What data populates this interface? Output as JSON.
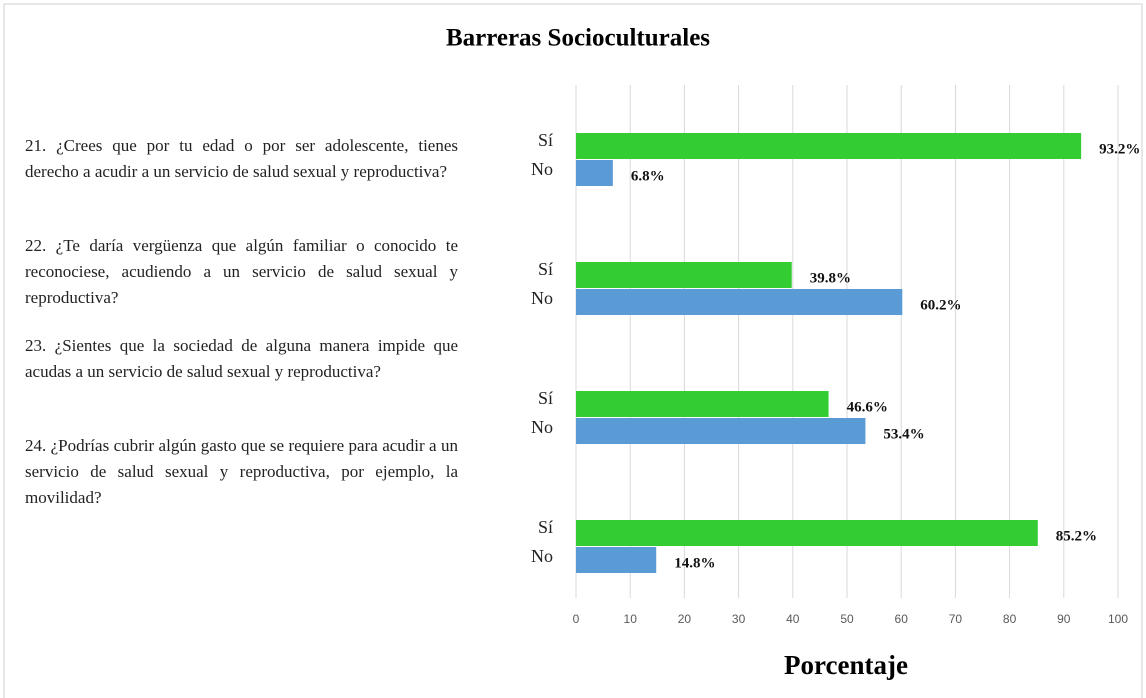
{
  "chart_data": {
    "type": "hbar",
    "title": "Barreras Socioculturales",
    "xlabel": "Porcentaje",
    "categories": [
      "21. ¿Crees que por tu edad o por ser adolescente, tienes derecho a acudir a un servicio de salud sexual y reproductiva?",
      "22. ¿Te daría vergüenza que algún familiar o conocido te reconociese, acudiendo a un servicio de salud sexual y reproductiva?",
      "23. ¿Sientes que la sociedad de alguna manera impide que acudas a un servicio de salud sexual y reproductiva?",
      "24. ¿Podrías cubrir algún gasto que se requiere para acudir a un servicio de salud sexual y reproductiva, por ejemplo, la movilidad?"
    ],
    "series": [
      {
        "name": "Sí",
        "color": "#33cc33",
        "values": [
          93.2,
          39.8,
          46.6,
          85.2
        ],
        "value_labels": [
          "93.2%",
          "39.8%",
          "46.6%",
          "85.2%"
        ]
      },
      {
        "name": "No",
        "color": "#5b9bd5",
        "values": [
          6.8,
          60.2,
          53.4,
          14.8
        ],
        "value_labels": [
          "6.8%",
          "60.2%",
          "53.4%",
          "14.8%"
        ]
      }
    ],
    "xlim": [
      0,
      100
    ],
    "xticks": [
      0,
      10,
      20,
      30,
      40,
      50,
      60,
      70,
      80,
      90,
      100
    ],
    "grid": true
  }
}
